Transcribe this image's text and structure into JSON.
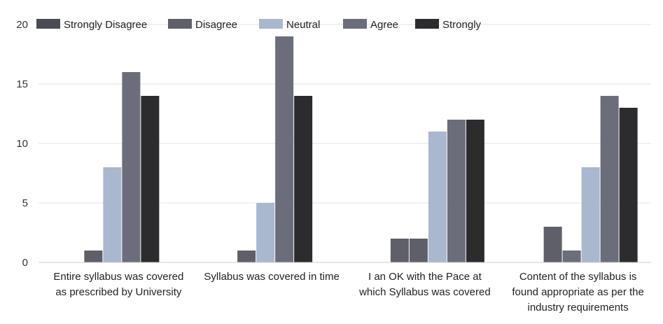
{
  "chart_data": {
    "type": "bar",
    "categories": [
      [
        "Entire syllabus was covered",
        "as prescribed by University"
      ],
      [
        "Syllabus was covered in time"
      ],
      [
        "I an OK with the Pace at",
        "which Syllabus was covered"
      ],
      [
        "Content of the syllabus is",
        "found appropriate as per the",
        "industry requirements"
      ]
    ],
    "series": [
      {
        "name": "Strongly Disagree",
        "color": "#4a4c55",
        "values": [
          0,
          0,
          0,
          0
        ]
      },
      {
        "name": "Disagree",
        "color": "#5e5f69",
        "values": [
          1,
          1,
          2,
          3
        ]
      },
      {
        "name": "Neutral",
        "color": "#a9b7cf",
        "values": [
          8,
          5,
          11,
          8
        ]
      },
      {
        "name": "Agree",
        "color": "#6b6d7b",
        "values": [
          16,
          19,
          12,
          14
        ]
      },
      {
        "name": "Strongly",
        "color": "#2c2c2f",
        "values": [
          14,
          14,
          12,
          13
        ]
      }
    ],
    "extra_bars": [
      {
        "category": 2,
        "after_series": 1,
        "value": 2,
        "color": "#5e5f69"
      },
      {
        "category": 3,
        "after_series": 1,
        "value": 1,
        "color": "#6b6d7b"
      }
    ],
    "yticks": [
      "0",
      "5",
      "10",
      "15",
      "20"
    ],
    "ylim": [
      0,
      20
    ],
    "grid": true,
    "legend_position": "top-left"
  }
}
